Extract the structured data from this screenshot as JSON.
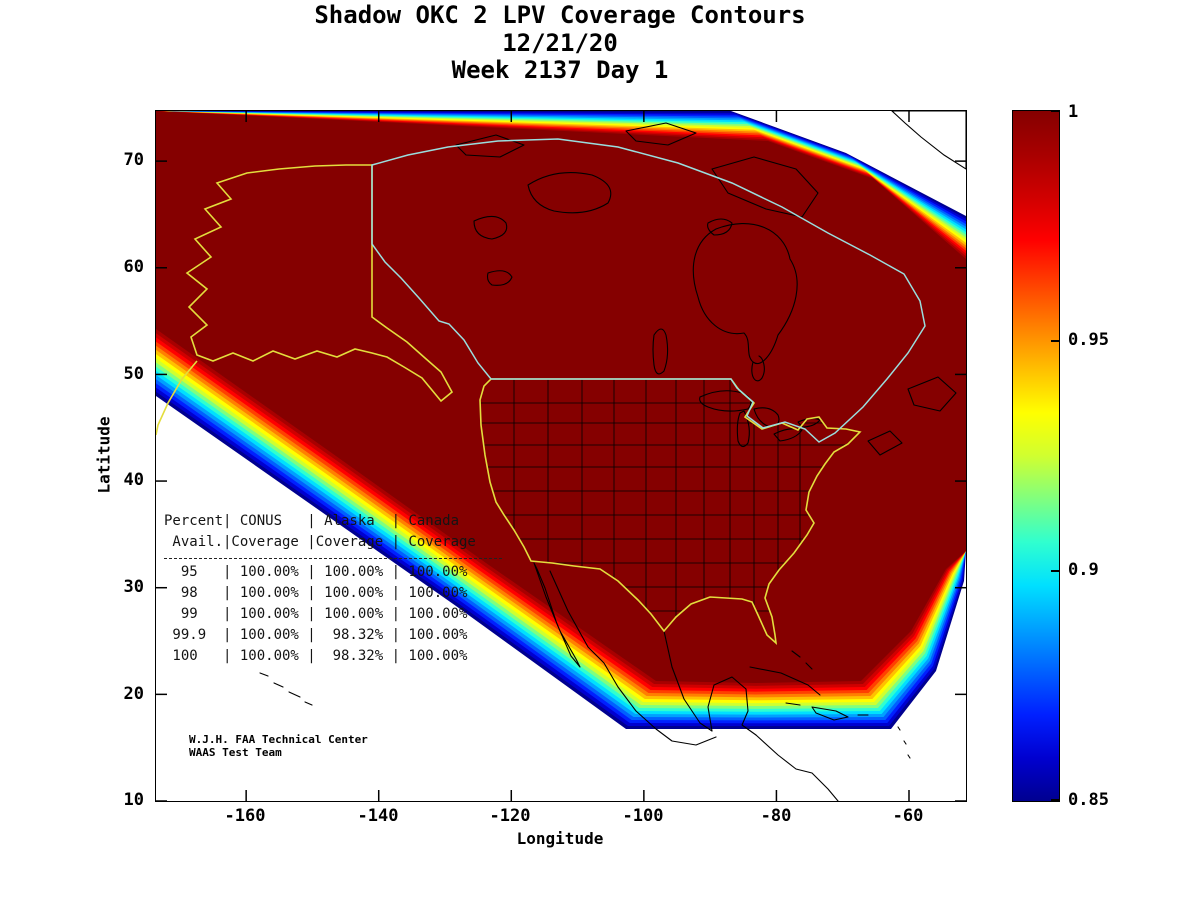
{
  "title": {
    "line1": "Shadow OKC 2 LPV Coverage Contours",
    "line2": "12/21/20",
    "line3": "Week 2137 Day 1"
  },
  "axes": {
    "x_label": "Longitude",
    "y_label": "Latitude",
    "x_ticks": [
      "-160",
      "-140",
      "-120",
      "-100",
      "-80",
      "-60"
    ],
    "y_ticks": [
      "70",
      "60",
      "50",
      "40",
      "30",
      "20",
      "10"
    ]
  },
  "colorbar": {
    "tick_labels": [
      "1",
      "0.95",
      "0.9",
      "0.85"
    ]
  },
  "coverage_table": {
    "lines": [
      "Percent| CONUS   | Alaska  | Canada",
      " Avail.|Coverage |Coverage | Coverage",
      "  95   | 100.00% | 100.00% | 100.00%",
      "  98   | 100.00% | 100.00% | 100.00%",
      "  99   | 100.00% | 100.00% | 100.00%",
      " 99.9  | 100.00% |  98.32% | 100.00%",
      " 100   | 100.00% |  98.32% | 100.00%"
    ]
  },
  "attribution": {
    "line1": "W.J.H. FAA Technical Center",
    "line2": "WAAS Test Team"
  },
  "chart_data": {
    "type": "heatmap",
    "title": "Shadow OKC 2 LPV Coverage Contours",
    "subtitle": [
      "12/21/20",
      "Week 2137 Day 1"
    ],
    "xlabel": "Longitude",
    "ylabel": "Latitude",
    "xlim": [
      -173.6,
      -51.4
    ],
    "ylim": [
      10,
      74.7
    ],
    "x_ticks": [
      -160,
      -140,
      -120,
      -100,
      -80,
      -60
    ],
    "y_ticks": [
      70,
      60,
      50,
      40,
      30,
      20,
      10
    ],
    "colormap": "jet",
    "colorbar_range": [
      0.85,
      1.0
    ],
    "colorbar_tick_values": [
      1,
      0.95,
      0.9,
      0.85
    ],
    "description": "WAAS LPV availability coverage contours over North America; interior availability 1.0 (dark red) fading through the jet colormap to 0.85 (dark blue) at the coverage boundary; CONUS and Alaska outlined in yellow, Canada in cyan, coastlines/states in black",
    "coverage_stats": {
      "percent_avail": [
        "95",
        "98",
        "99",
        "99.9",
        "100"
      ],
      "conus_coverage": [
        "100.00%",
        "100.00%",
        "100.00%",
        "100.00%",
        "100.00%"
      ],
      "alaska_coverage": [
        "100.00%",
        "100.00%",
        "100.00%",
        "98.32%",
        "98.32%"
      ],
      "canada_coverage": [
        "100.00%",
        "100.00%",
        "100.00%",
        "100.00%",
        "100.00%"
      ]
    },
    "band_colors_outer_to_inner": [
      "#000090",
      "#0000d0",
      "#0020ff",
      "#0060ff",
      "#00a0ff",
      "#00e0ff",
      "#30ffcf",
      "#80ff7f",
      "#d0ff30",
      "#ffff00",
      "#ffc000",
      "#ff8000",
      "#ff4000",
      "#ff0000",
      "#d00000",
      "#a80000"
    ],
    "core_color": "#850000",
    "outline_colors": {
      "conus_alaska": "#e3dd3d",
      "canada": "#9adede",
      "geography": "#000000"
    }
  }
}
